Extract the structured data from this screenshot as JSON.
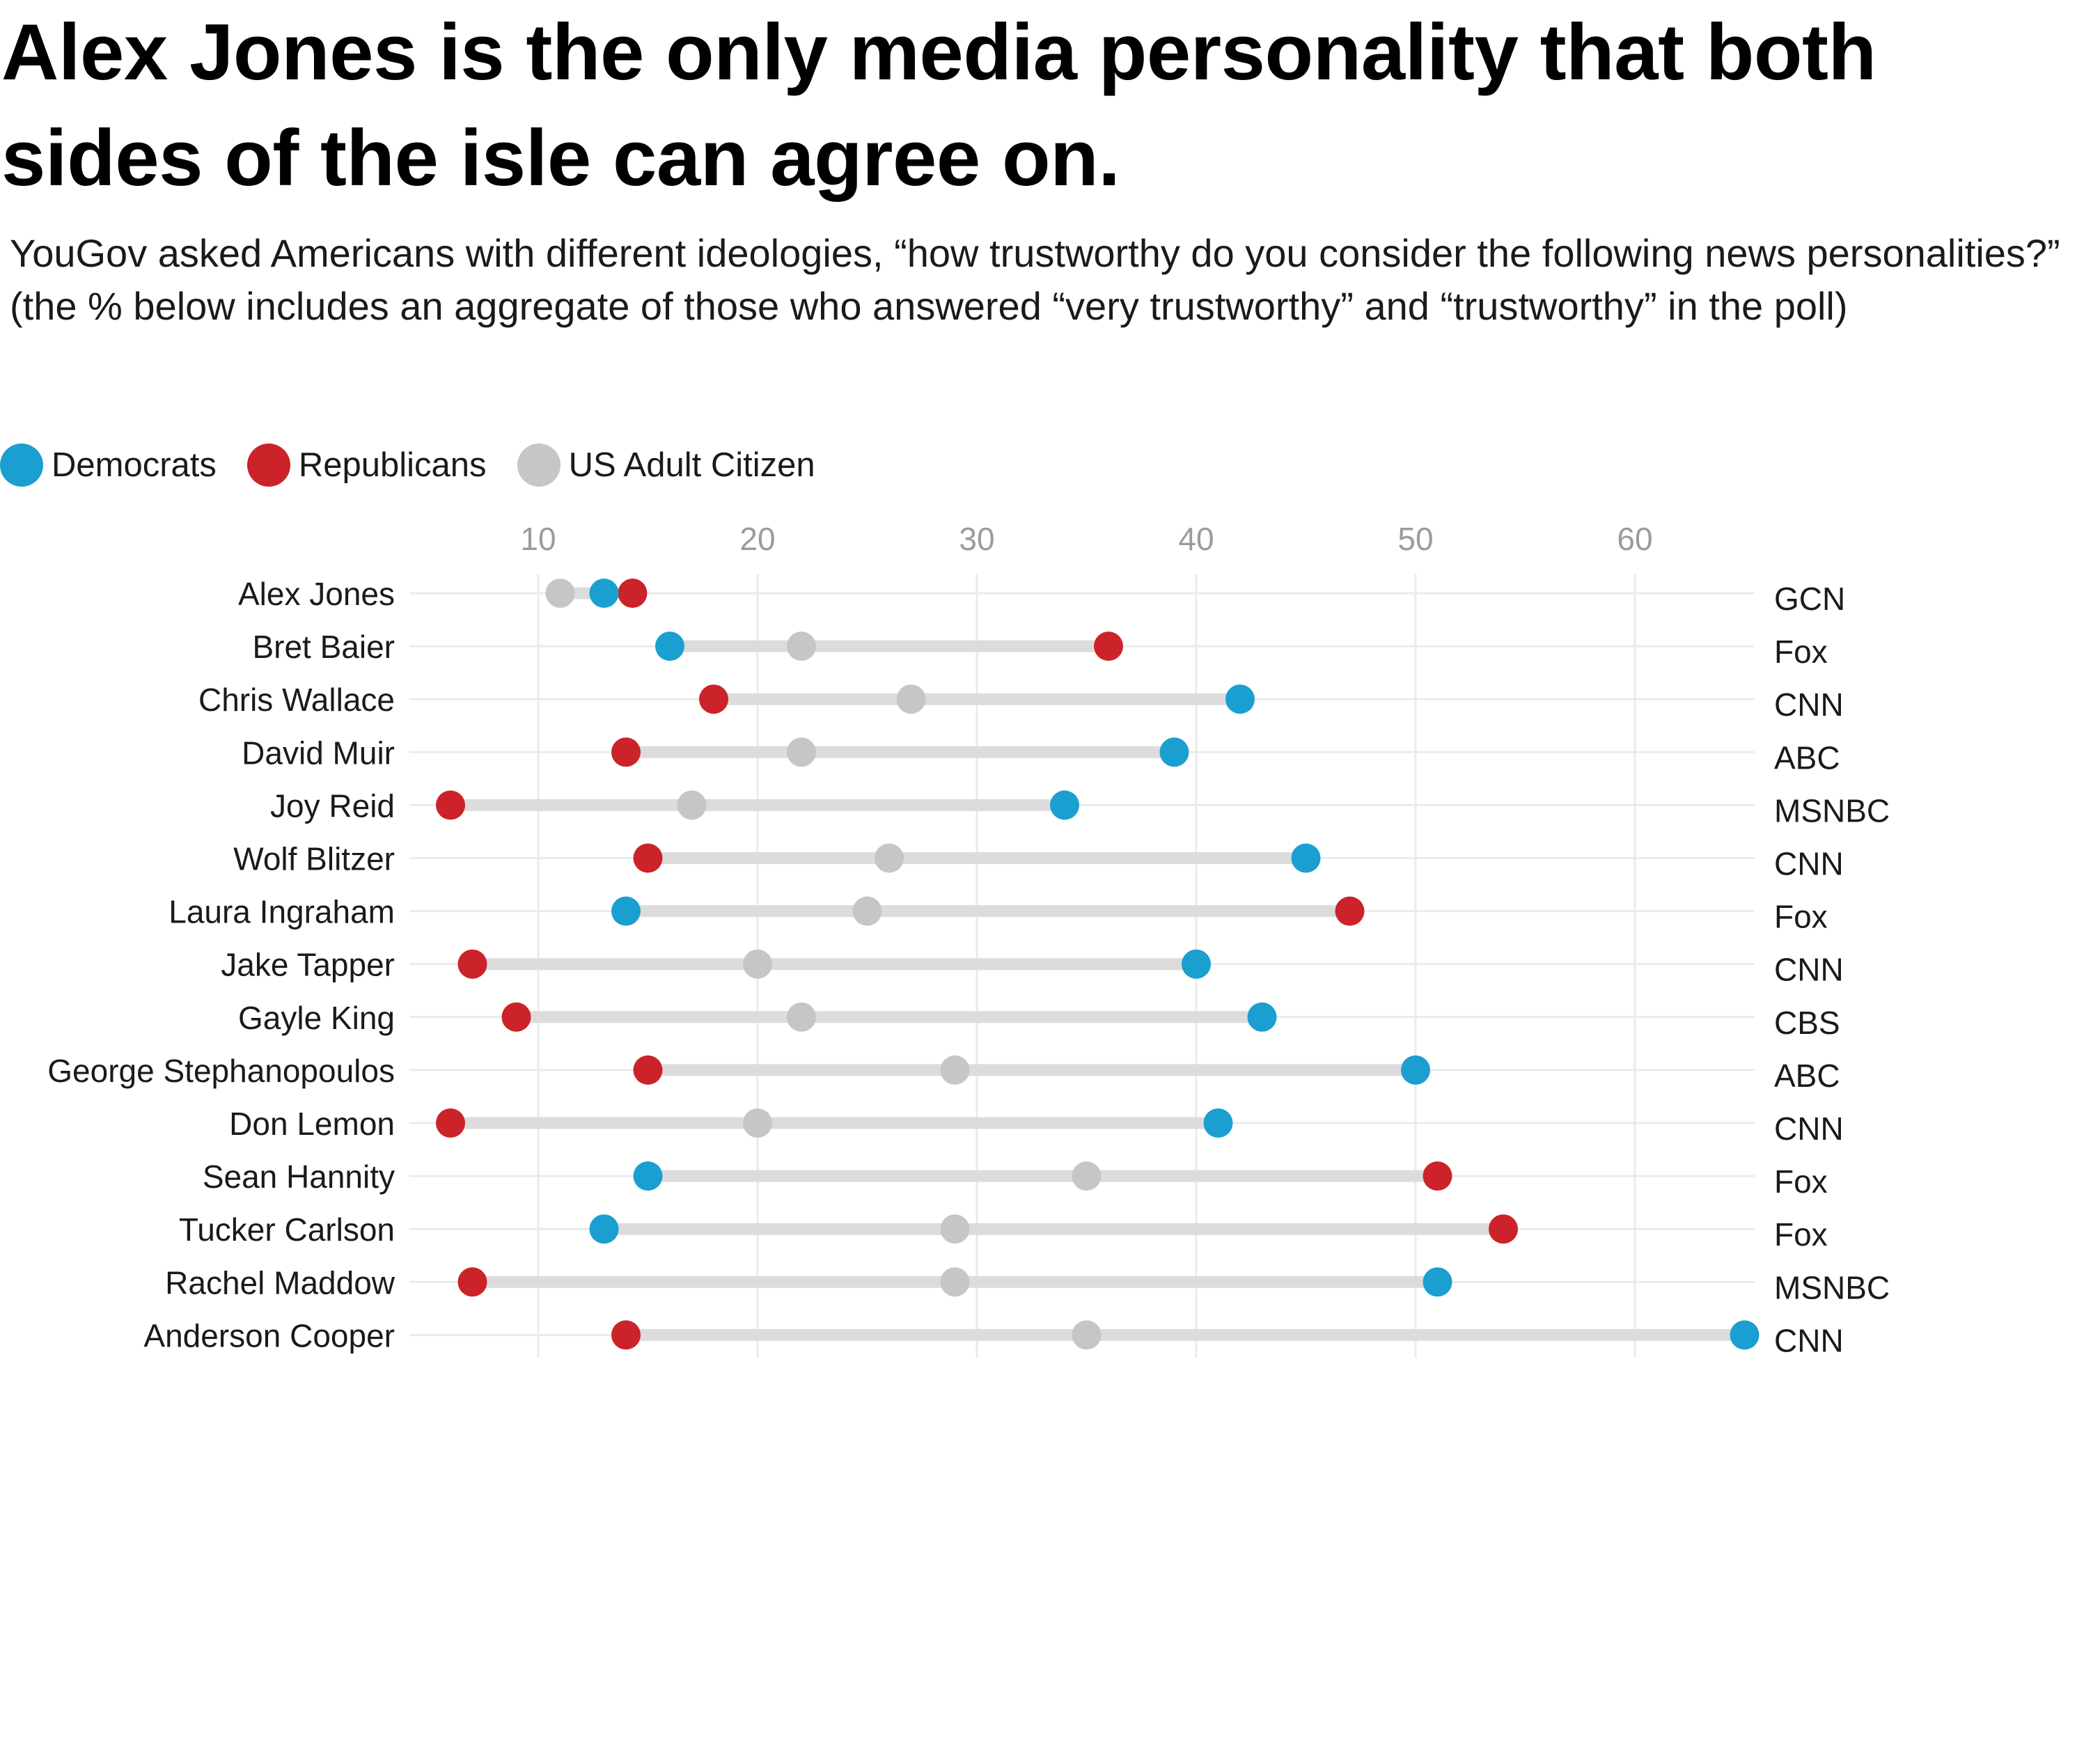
{
  "title": "Alex Jones is the only media personality that both sides of the isle can agree on.",
  "subtitle": "YouGov asked Americans with different ideologies, “how trustworthy do you consider the following news personalities?” (the % below includes an aggregate of those who answered “very trustworthy” and “trustworthy” in the poll)",
  "legend": {
    "items": [
      {
        "label": "Democrats",
        "color": "#1a9fd0"
      },
      {
        "label": "Republicans",
        "color": "#cc2229"
      },
      {
        "label": "US Adult Citizen",
        "color": "#c6c6c6"
      }
    ]
  },
  "chart_data": {
    "type": "dumbbell",
    "x_ticks": [
      10,
      20,
      30,
      40,
      50,
      60
    ],
    "xlim": [
      4.5,
      65.5
    ],
    "grid": "vertical and horizontal",
    "legend_position": "top-left",
    "colors": {
      "democrats": "#1a9fd0",
      "republicans": "#cc2229",
      "us_adult_citizen": "#c6c6c6",
      "range_bar": "#dcdcdc",
      "grid": "#ebebeb"
    },
    "rows": [
      {
        "name": "Alex Jones",
        "network": "GCN",
        "democrats": 13,
        "republicans": 14.3,
        "us_adult_citizen": 11
      },
      {
        "name": "Bret Baier",
        "network": "Fox",
        "democrats": 16,
        "republicans": 36,
        "us_adult_citizen": 22
      },
      {
        "name": "Chris Wallace",
        "network": "CNN",
        "democrats": 42,
        "republicans": 18,
        "us_adult_citizen": 27
      },
      {
        "name": "David Muir",
        "network": "ABC",
        "democrats": 39,
        "republicans": 14,
        "us_adult_citizen": 22
      },
      {
        "name": "Joy Reid",
        "network": "MSNBC",
        "democrats": 34,
        "republicans": 6,
        "us_adult_citizen": 17
      },
      {
        "name": "Wolf Blitzer",
        "network": "CNN",
        "democrats": 45,
        "republicans": 15,
        "us_adult_citizen": 26
      },
      {
        "name": "Laura Ingraham",
        "network": "Fox",
        "democrats": 14,
        "republicans": 47,
        "us_adult_citizen": 25
      },
      {
        "name": "Jake Tapper",
        "network": "CNN",
        "democrats": 40,
        "republicans": 7,
        "us_adult_citizen": 20
      },
      {
        "name": "Gayle King",
        "network": "CBS",
        "democrats": 43,
        "republicans": 9,
        "us_adult_citizen": 22
      },
      {
        "name": "George Stephanopoulos",
        "network": "ABC",
        "democrats": 50,
        "republicans": 15,
        "us_adult_citizen": 29
      },
      {
        "name": "Don Lemon",
        "network": "CNN",
        "democrats": 41,
        "republicans": 6,
        "us_adult_citizen": 20
      },
      {
        "name": "Sean Hannity",
        "network": "Fox",
        "democrats": 15,
        "republicans": 51,
        "us_adult_citizen": 35
      },
      {
        "name": "Tucker Carlson",
        "network": "Fox",
        "democrats": 13,
        "republicans": 54,
        "us_adult_citizen": 29
      },
      {
        "name": "Rachel Maddow",
        "network": "MSNBC",
        "democrats": 51,
        "republicans": 7,
        "us_adult_citizen": 29
      },
      {
        "name": "Anderson Cooper",
        "network": "CNN",
        "democrats": 65,
        "republicans": 14,
        "us_adult_citizen": 35
      }
    ]
  }
}
